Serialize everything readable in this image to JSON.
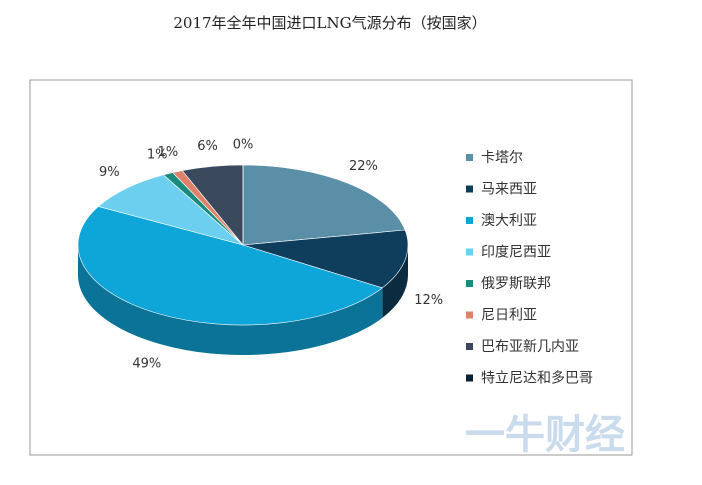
{
  "chart_data": {
    "type": "pie",
    "title": "2017年全年中国进口LNG气源分布（按国家）",
    "categories": [
      "卡塔尔",
      "马来西亚",
      "澳大利亚",
      "印度尼西亚",
      "俄罗斯联邦",
      "尼日利亚",
      "巴布亚新几内亚",
      "特立尼达和多巴哥"
    ],
    "values": [
      22,
      12,
      49,
      9,
      1,
      1,
      6,
      0
    ],
    "value_labels": [
      "22%",
      "12%",
      "49%",
      "9%",
      "1%",
      "1%",
      "6%",
      "0%"
    ],
    "colors": [
      "#5b8fa8",
      "#0f3d5c",
      "#0ea5d8",
      "#6dcff0",
      "#1a8a7a",
      "#e0826a",
      "#3a4a5c",
      "#0a2233"
    ],
    "legend": "right",
    "watermark": "一牛财经"
  }
}
